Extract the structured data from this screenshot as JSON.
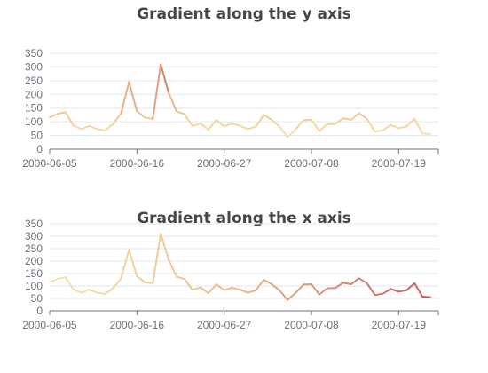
{
  "chart_data": [
    {
      "type": "line",
      "title": "Gradient along the y axis",
      "gradient": "y",
      "xlabel": "",
      "ylabel": "",
      "ylim": [
        0,
        350
      ],
      "yticks": [
        0,
        50,
        100,
        150,
        200,
        250,
        300,
        350
      ],
      "grid": true,
      "xtick_labels": [
        "2000-06-05",
        "2000-06-16",
        "2000-06-27",
        "2000-07-08",
        "2000-07-19"
      ],
      "x_start": "2000-06-05",
      "x_end": "2000-07-24",
      "colors": [
        "#f9e5a8",
        "#e8b98b",
        "#c85f5f"
      ],
      "series": [
        {
          "x": [
            "2000-06-05",
            "2000-06-06",
            "2000-06-07",
            "2000-06-08",
            "2000-06-09",
            "2000-06-10",
            "2000-06-11",
            "2000-06-12",
            "2000-06-13",
            "2000-06-14",
            "2000-06-15",
            "2000-06-16",
            "2000-06-17",
            "2000-06-18",
            "2000-06-19",
            "2000-06-20",
            "2000-06-21",
            "2000-06-22",
            "2000-06-23",
            "2000-06-24",
            "2000-06-25",
            "2000-06-26",
            "2000-06-27",
            "2000-06-28",
            "2000-06-29",
            "2000-06-30",
            "2000-07-01",
            "2000-07-02",
            "2000-07-03",
            "2000-07-04",
            "2000-07-05",
            "2000-07-06",
            "2000-07-07",
            "2000-07-08",
            "2000-07-09",
            "2000-07-10",
            "2000-07-11",
            "2000-07-12",
            "2000-07-13",
            "2000-07-14",
            "2000-07-15",
            "2000-07-16",
            "2000-07-17",
            "2000-07-18",
            "2000-07-19",
            "2000-07-20",
            "2000-07-21",
            "2000-07-22",
            "2000-07-23"
          ],
          "values": [
            116,
            129,
            135,
            86,
            73,
            85,
            73,
            68,
            92,
            130,
            245,
            139,
            115,
            111,
            309,
            206,
            137,
            128,
            85,
            94,
            71,
            106,
            84,
            93,
            85,
            73,
            83,
            125,
            107,
            82,
            44,
            72,
            106,
            107,
            66,
            91,
            92,
            113,
            107,
            131,
            111,
            64,
            69,
            88,
            77,
            83,
            111,
            57,
            55
          ]
        }
      ]
    },
    {
      "type": "line",
      "title": "Gradient along the x axis",
      "gradient": "x",
      "xlabel": "",
      "ylabel": "",
      "ylim": [
        0,
        350
      ],
      "yticks": [
        0,
        50,
        100,
        150,
        200,
        250,
        300,
        350
      ],
      "grid": true,
      "xtick_labels": [
        "2000-06-05",
        "2000-06-16",
        "2000-06-27",
        "2000-07-08",
        "2000-07-19"
      ],
      "x_start": "2000-06-05",
      "x_end": "2000-07-24",
      "colors": [
        "#f9e5a8",
        "#e8b98b",
        "#c85f5f"
      ],
      "series": [
        {
          "x": [
            "2000-06-05",
            "2000-06-06",
            "2000-06-07",
            "2000-06-08",
            "2000-06-09",
            "2000-06-10",
            "2000-06-11",
            "2000-06-12",
            "2000-06-13",
            "2000-06-14",
            "2000-06-15",
            "2000-06-16",
            "2000-06-17",
            "2000-06-18",
            "2000-06-19",
            "2000-06-20",
            "2000-06-21",
            "2000-06-22",
            "2000-06-23",
            "2000-06-24",
            "2000-06-25",
            "2000-06-26",
            "2000-06-27",
            "2000-06-28",
            "2000-06-29",
            "2000-06-30",
            "2000-07-01",
            "2000-07-02",
            "2000-07-03",
            "2000-07-04",
            "2000-07-05",
            "2000-07-06",
            "2000-07-07",
            "2000-07-08",
            "2000-07-09",
            "2000-07-10",
            "2000-07-11",
            "2000-07-12",
            "2000-07-13",
            "2000-07-14",
            "2000-07-15",
            "2000-07-16",
            "2000-07-17",
            "2000-07-18",
            "2000-07-19",
            "2000-07-20",
            "2000-07-21",
            "2000-07-22",
            "2000-07-23"
          ],
          "values": [
            116,
            129,
            135,
            86,
            73,
            85,
            73,
            68,
            92,
            130,
            245,
            139,
            115,
            111,
            309,
            206,
            137,
            128,
            85,
            94,
            71,
            106,
            84,
            93,
            85,
            73,
            83,
            125,
            107,
            82,
            44,
            72,
            106,
            107,
            66,
            91,
            92,
            113,
            107,
            131,
            111,
            64,
            69,
            88,
            77,
            83,
            111,
            57,
            55
          ]
        }
      ]
    }
  ]
}
